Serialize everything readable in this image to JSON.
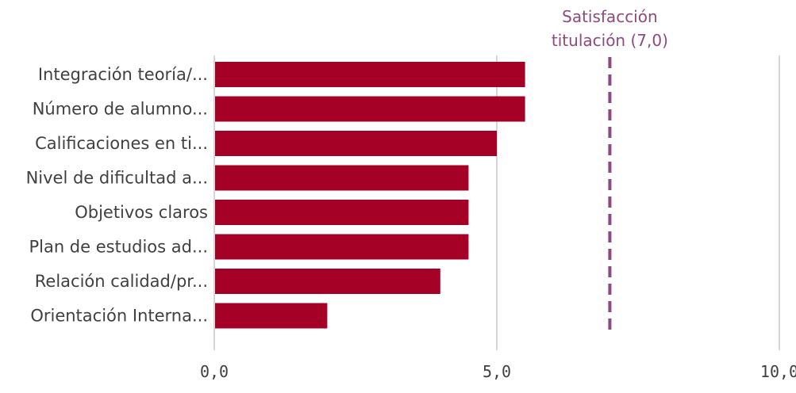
{
  "chart_data": {
    "type": "bar",
    "orientation": "horizontal",
    "categories": [
      "Integración teoría/...",
      "Número de alumno...",
      "Calificaciones en ti...",
      "Nivel de dificultad a...",
      "Objetivos claros",
      "Plan de estudios ad...",
      "Relación calidad/pr...",
      "Orientación Interna..."
    ],
    "values": [
      5.5,
      5.5,
      5.0,
      4.5,
      4.5,
      4.5,
      4.0,
      2.0
    ],
    "xlim": [
      0,
      10
    ],
    "xticks": [
      0,
      5,
      10
    ],
    "xtick_labels": [
      "0,0",
      "5,0",
      "10,0"
    ],
    "grid": "vertical",
    "bar_color": "#a50026",
    "reference_line": {
      "value": 7.0,
      "label_lines": [
        "Satisfacción",
        "titulación (7,0)"
      ],
      "color": "#8c4a7f",
      "style": "dashed"
    },
    "title": "",
    "xlabel": "",
    "ylabel": ""
  }
}
